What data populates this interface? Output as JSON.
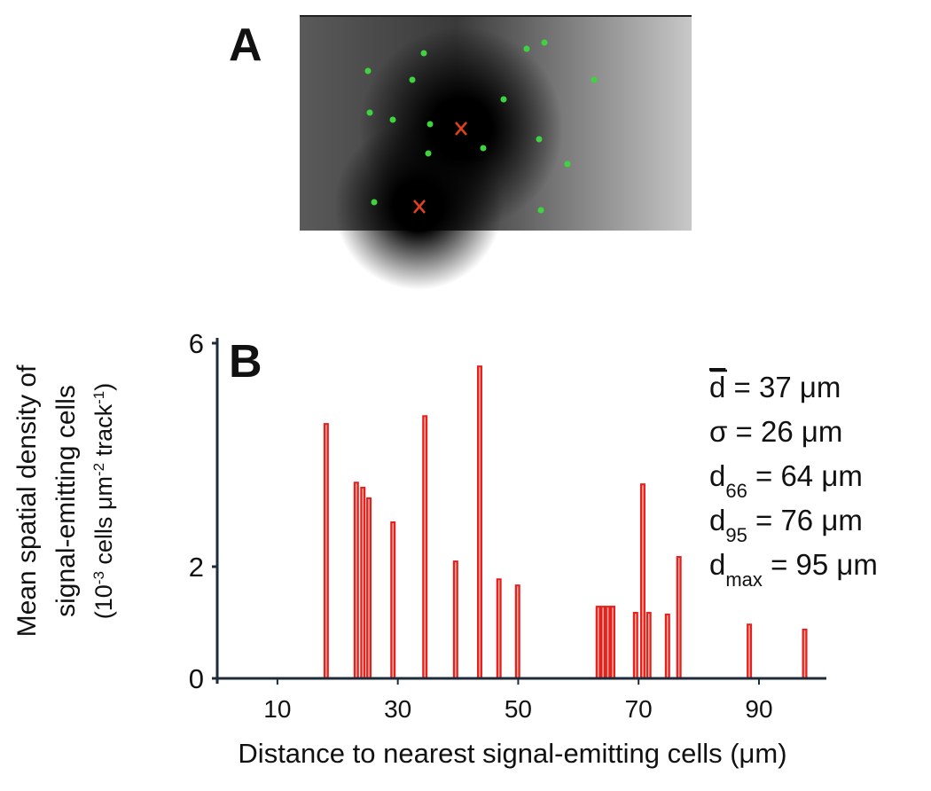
{
  "panel_a": {
    "label": "A"
  },
  "chart_data": {
    "type": "bar",
    "panel_label": "B",
    "x_label": "Distance to nearest signal-emitting cells (μm)",
    "y_label": [
      "Mean spatial density of",
      "signal-emitting cells"
    ],
    "y_label_units": [
      {
        "text": "(10"
      },
      {
        "text": "-3",
        "sup": true
      },
      {
        "text": " cells μm"
      },
      {
        "text": "-2",
        "sup": true
      },
      {
        "text": " track"
      },
      {
        "text": "-1",
        "sup": true
      },
      {
        "text": ")"
      }
    ],
    "x": [
      18.1,
      23.1,
      24.2,
      25.2,
      29.2,
      34.5,
      39.6,
      43.6,
      46.8,
      49.9,
      63.3,
      64.1,
      64.9,
      65.7,
      69.5,
      70.7,
      71.7,
      74.8,
      76.7,
      88.4,
      97.6
    ],
    "values": [
      4.57,
      3.52,
      3.43,
      3.24,
      2.81,
      4.71,
      2.11,
      5.6,
      1.79,
      1.68,
      1.3,
      1.3,
      1.3,
      1.3,
      1.19,
      3.49,
      1.19,
      1.16,
      2.19,
      0.98,
      0.89
    ],
    "color": "#e8201c",
    "xlim": [
      0,
      101.2
    ],
    "xticks": [
      10,
      30,
      50,
      70,
      90
    ],
    "ylim": [
      0,
      6
    ],
    "yticks": [
      0,
      2,
      6
    ],
    "annotations": [
      {
        "base": "d",
        "overline": true,
        "rest": " = 37 μm"
      },
      {
        "base": "σ",
        "rest": " = 26 μm"
      },
      {
        "base": "d",
        "sub": "66",
        "rest": " = 64 μm"
      },
      {
        "base": "d",
        "sub": "95",
        "rest": " = 76 μm"
      },
      {
        "base": "d",
        "sub": "max",
        "rest": " = 95 μm"
      }
    ]
  }
}
